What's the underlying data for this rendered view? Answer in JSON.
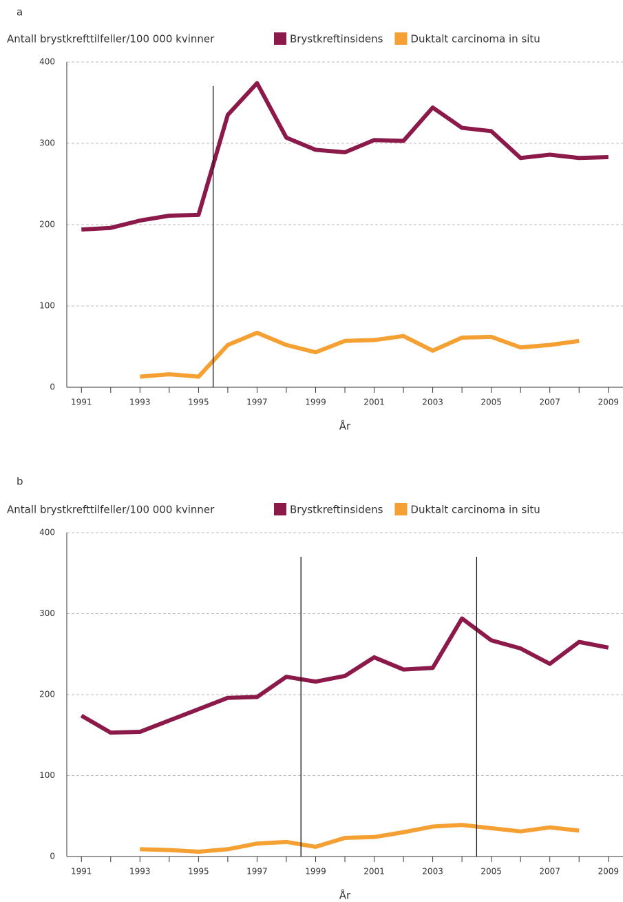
{
  "chart_data": [
    {
      "type": "line",
      "label": "a",
      "ylabel": "Antall brystkrefttilfeller/100 000 kvinner",
      "xlabel": "År",
      "x": [
        1991,
        1992,
        1993,
        1994,
        1995,
        1996,
        1997,
        1998,
        1999,
        2000,
        2001,
        2002,
        2003,
        2004,
        2005,
        2006,
        2007,
        2008,
        2009
      ],
      "series": [
        {
          "name": "Brystkreftinsidens",
          "color": "#8b1a4b",
          "values": [
            194,
            196,
            205,
            211,
            212,
            335,
            374,
            307,
            292,
            289,
            304,
            303,
            344,
            319,
            315,
            282,
            286,
            282,
            283
          ]
        },
        {
          "name": "Duktalt carcinoma in situ",
          "color": "#f5a033",
          "values": [
            null,
            null,
            13,
            16,
            13,
            52,
            67,
            52,
            43,
            57,
            58,
            63,
            45,
            61,
            62,
            49,
            52,
            57,
            null
          ]
        }
      ],
      "xlim": [
        1990.5,
        2009.5
      ],
      "xticks": [
        1991,
        1993,
        1995,
        1997,
        1999,
        2001,
        2003,
        2005,
        2007,
        2009
      ],
      "ylim": [
        0,
        400
      ],
      "yticks": [
        0,
        100,
        200,
        300,
        400
      ],
      "grid": true,
      "vlines": [
        1995.5
      ]
    },
    {
      "type": "line",
      "label": "b",
      "ylabel": "Antall brystkrefttilfeller/100 000 kvinner",
      "xlabel": "År",
      "x": [
        1991,
        1992,
        1993,
        1994,
        1995,
        1996,
        1997,
        1998,
        1999,
        2000,
        2001,
        2002,
        2003,
        2004,
        2005,
        2006,
        2007,
        2008,
        2009
      ],
      "series": [
        {
          "name": "Brystkreftinsidens",
          "color": "#8b1a4b",
          "values": [
            174,
            153,
            154,
            168,
            182,
            196,
            197,
            222,
            216,
            223,
            246,
            231,
            233,
            294,
            267,
            257,
            238,
            265,
            258
          ]
        },
        {
          "name": "Duktalt carcinoma in situ",
          "color": "#f5a033",
          "values": [
            null,
            null,
            9,
            8,
            6,
            9,
            16,
            18,
            12,
            23,
            24,
            30,
            37,
            39,
            35,
            31,
            36,
            32,
            null
          ]
        }
      ],
      "xlim": [
        1990.5,
        2009.5
      ],
      "xticks": [
        1991,
        1993,
        1995,
        1997,
        1999,
        2001,
        2003,
        2005,
        2007,
        2009
      ],
      "ylim": [
        0,
        400
      ],
      "yticks": [
        0,
        100,
        200,
        300,
        400
      ],
      "grid": true,
      "vlines": [
        1998.5,
        2004.5
      ]
    }
  ]
}
